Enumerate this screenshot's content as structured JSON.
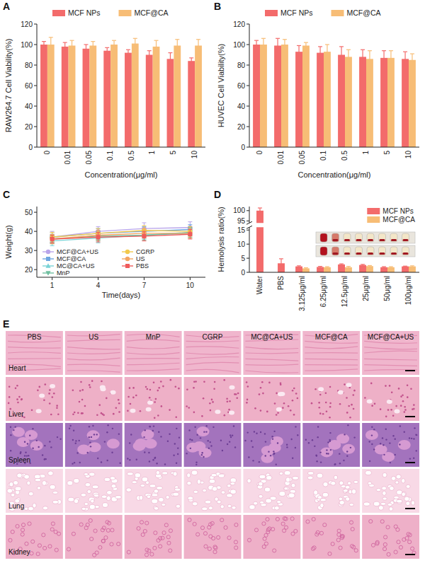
{
  "panel_letters": [
    "A",
    "B",
    "C",
    "D",
    "E"
  ],
  "chart_data": [
    {
      "type": "bar",
      "xlabel": "Concentration(μg/ml)",
      "ylabel": "RAW264.7 Cell Viability(%)",
      "categories": [
        "0",
        "0.01",
        "0.05",
        "0.1",
        "0.5",
        "1",
        "5",
        "10"
      ],
      "series": [
        {
          "name": "MCF NPs",
          "color": "#f36b6b",
          "values": [
            100,
            98,
            96,
            94,
            92,
            90,
            86,
            84
          ],
          "errors": [
            3,
            4,
            4,
            3,
            3,
            4,
            6,
            3
          ]
        },
        {
          "name": "MCF@CA",
          "color": "#f7bd76",
          "values": [
            100,
            99,
            99,
            100,
            101,
            98,
            99,
            99
          ],
          "errors": [
            7,
            5,
            4,
            4,
            5,
            6,
            6,
            6
          ]
        }
      ],
      "ylim": [
        0,
        120
      ],
      "yticks": [
        0,
        20,
        40,
        60,
        80,
        100,
        120
      ],
      "legend": "top"
    },
    {
      "type": "bar",
      "xlabel": "Concentration(μg/ml)",
      "ylabel": "HUVEC Cell Viability(%)",
      "categories": [
        "0",
        "0.01",
        "0.05",
        "0.1",
        "0.5",
        "1",
        "5",
        "10"
      ],
      "series": [
        {
          "name": "MCF NPs",
          "color": "#f36b6b",
          "values": [
            100,
            99,
            93,
            92,
            90,
            88,
            87,
            86
          ],
          "errors": [
            4,
            7,
            6,
            6,
            8,
            7,
            7,
            7
          ]
        },
        {
          "name": "MCF@CA",
          "color": "#f7bd76",
          "values": [
            100,
            100,
            99,
            93,
            88,
            86,
            87,
            85
          ],
          "errors": [
            6,
            5,
            3,
            7,
            7,
            8,
            7,
            6
          ]
        }
      ],
      "ylim": [
        0,
        120
      ],
      "yticks": [
        0,
        20,
        40,
        60,
        80,
        100,
        120
      ],
      "legend": "top"
    },
    {
      "type": "line",
      "xlabel": "Time(days)",
      "ylabel": "Weight(g)",
      "x": [
        1,
        4,
        7,
        10
      ],
      "series": [
        {
          "name": "MCF@CA+US",
          "color": "#b9a5ea",
          "marker": "circle",
          "values": [
            37,
            40,
            41.5,
            42
          ],
          "errors": [
            3,
            2.5,
            3,
            3
          ]
        },
        {
          "name": "MCF@CA",
          "color": "#6ea6e0",
          "marker": "square",
          "values": [
            37,
            39,
            40,
            41
          ],
          "errors": [
            2.5,
            2.5,
            2.5,
            2.5
          ]
        },
        {
          "name": "MC@CA+US",
          "color": "#79d3d6",
          "marker": "triangle-up",
          "values": [
            35,
            36.5,
            38,
            39
          ],
          "errors": [
            2.5,
            2.5,
            2,
            2.5
          ]
        },
        {
          "name": "MnP",
          "color": "#6fbf9f",
          "marker": "triangle-down",
          "values": [
            36,
            37.5,
            38,
            39.5
          ],
          "errors": [
            2.5,
            2.5,
            2.5,
            2.5
          ]
        },
        {
          "name": "CGRP",
          "color": "#f2c94c",
          "marker": "circle",
          "values": [
            37,
            39,
            40.5,
            40
          ],
          "errors": [
            2.5,
            2.5,
            2.5,
            2.5
          ]
        },
        {
          "name": "US",
          "color": "#f4a462",
          "marker": "circle",
          "values": [
            36,
            38,
            39,
            39
          ],
          "errors": [
            2.5,
            2.5,
            2.5,
            2.5
          ]
        },
        {
          "name": "PBS",
          "color": "#ef5b5b",
          "marker": "square",
          "values": [
            36,
            37,
            37.5,
            38.5
          ],
          "errors": [
            2,
            2.5,
            2.5,
            2.5
          ]
        }
      ],
      "xlim": [
        0,
        11
      ],
      "xticks": [
        1,
        4,
        7,
        10
      ],
      "ylim": [
        16,
        53
      ],
      "yticks": [
        20,
        30,
        40,
        50
      ],
      "legend": "bottom"
    },
    {
      "type": "bar",
      "ylabel": "Hemolysis ratio(%)",
      "categories": [
        "Water",
        "PBS",
        "3.125μg/ml",
        "6.25μg/ml",
        "12.5μg/ml",
        "25μg/ml",
        "50μg/ml",
        "100μg/ml"
      ],
      "series": [
        {
          "name": "MCF NPs",
          "color": "#f36b6b",
          "values": [
            100,
            3.2,
            2.1,
            1.9,
            2.8,
            2.6,
            1.8,
            2.1
          ],
          "errors": [
            1.3,
            1.6,
            0.2,
            0.2,
            0.2,
            0.2,
            0.2,
            0.1
          ]
        },
        {
          "name": "MCF@CA",
          "color": "#f7bd76",
          "values": [
            null,
            null,
            1.4,
            1.8,
            1.8,
            2.2,
            1.8,
            2.1
          ],
          "errors": [
            null,
            null,
            0.2,
            0.2,
            0.3,
            0.2,
            0.2,
            0.2
          ]
        }
      ],
      "ylim": [
        0,
        102
      ],
      "yticks": [
        0,
        5,
        10,
        15,
        95,
        100
      ],
      "axis_break": [
        16,
        94
      ],
      "legend": "top-right"
    }
  ],
  "histology": {
    "columns": [
      "PBS",
      "US",
      "MnP",
      "CGRP",
      "MC@CA+US",
      "MCF@CA",
      "MCF@CA+US"
    ],
    "rows": [
      "Heart",
      "Liver",
      "Spleen",
      "Lung",
      "Kidney"
    ]
  }
}
